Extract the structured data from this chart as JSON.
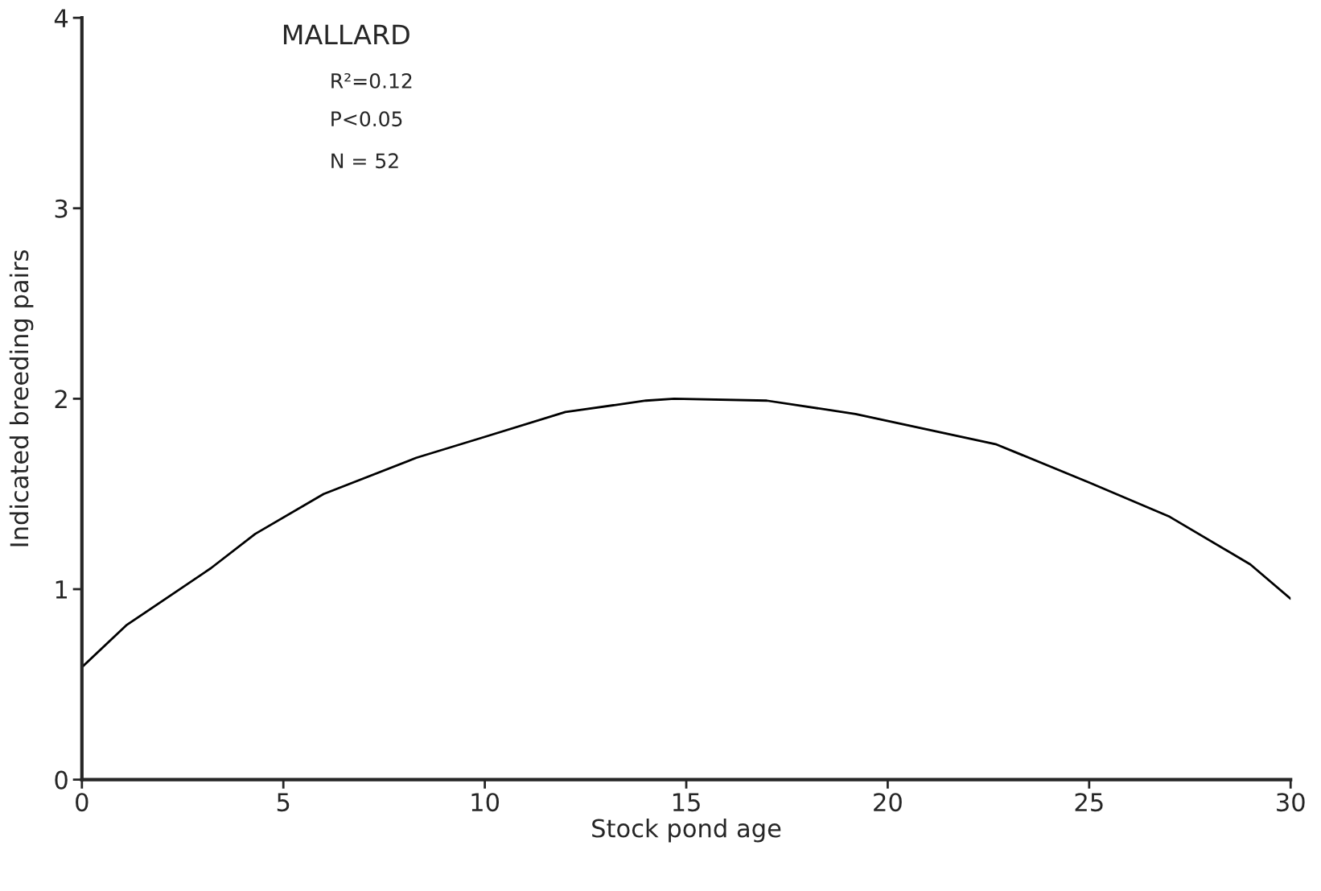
{
  "chart_data": {
    "type": "line",
    "xlabel": "Stock pond age",
    "ylabel": "Indicated breeding pairs",
    "annotations": [
      "MALLARD",
      "R²=0.12",
      "P<0.05",
      "N = 52"
    ],
    "x": [
      0,
      1.1,
      3.2,
      4.3,
      6,
      8.3,
      10,
      12,
      14,
      14.7,
      17,
      19.2,
      22.7,
      25,
      27,
      29,
      30
    ],
    "series": [
      {
        "color": "#000000",
        "values": [
          0.59,
          0.81,
          1.11,
          1.29,
          1.5,
          1.69,
          1.8,
          1.93,
          1.99,
          2.0,
          1.99,
          1.92,
          1.76,
          1.56,
          1.38,
          1.13,
          0.95
        ]
      }
    ],
    "xlim": [
      0,
      30
    ],
    "ylim": [
      0,
      4
    ],
    "xticks": [
      0,
      5,
      10,
      15,
      20,
      25,
      30
    ],
    "yticks": [
      0,
      1,
      2,
      3,
      4
    ],
    "grid": false,
    "legend": false,
    "marker": "none",
    "line_style": "solid"
  }
}
